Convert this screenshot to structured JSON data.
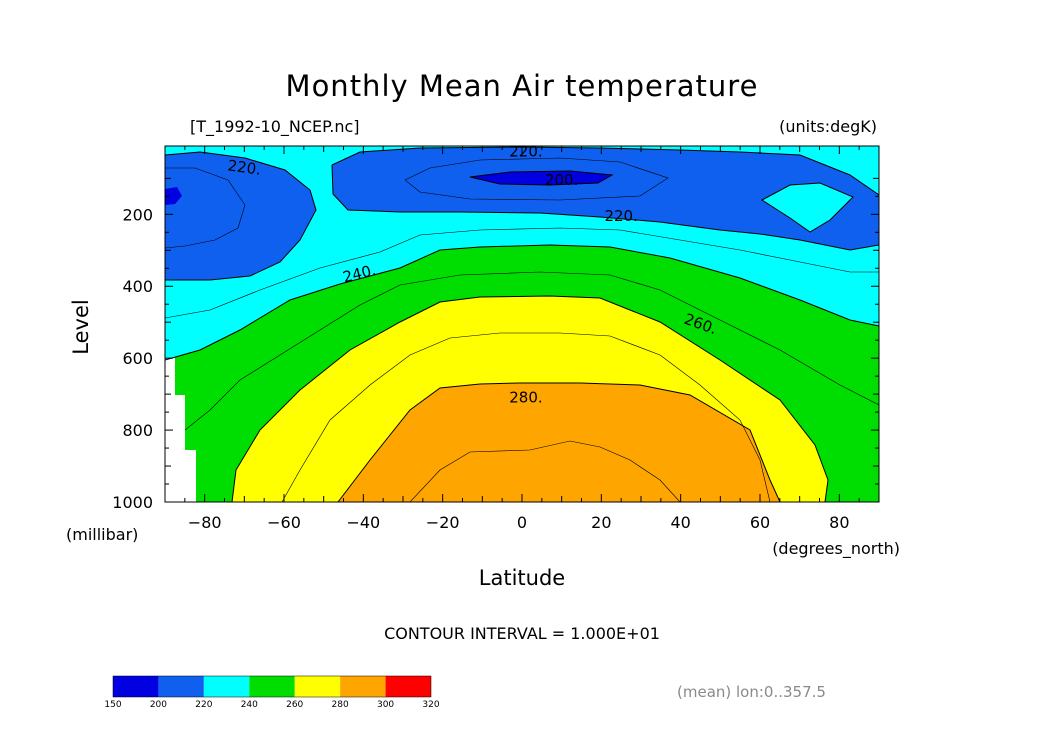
{
  "chart_data": {
    "type": "contour",
    "title": "Monthly Mean Air temperature",
    "dataset": "[T_1992-10_NCEP.nc]",
    "units": "(units:degK)",
    "xlabel": "Latitude",
    "xunits": "(degrees_north)",
    "ylabel": "Level",
    "yunits": "(millibar)",
    "xlim": [
      -90,
      90
    ],
    "ylim": [
      1000,
      10
    ],
    "x_ticks": [
      -80,
      -60,
      -40,
      -20,
      0,
      20,
      40,
      60,
      80
    ],
    "x_tick_labels": [
      "−80",
      "−60",
      "−40",
      "−20",
      "0",
      "20",
      "40",
      "60",
      "80"
    ],
    "y_ticks": [
      200,
      400,
      600,
      800,
      1000
    ],
    "y_tick_labels": [
      "200",
      "400",
      "600",
      "800",
      "1000"
    ],
    "contour_interval_text": "CONTOUR INTERVAL = 1.000E+01",
    "footnote": "(mean) lon:0..357.5",
    "contour_labels": [
      {
        "text": "220.",
        "lat": -70,
        "level": 70
      },
      {
        "text": "220.",
        "lat": 1,
        "level": 25
      },
      {
        "text": "200.",
        "lat": 10,
        "level": 105
      },
      {
        "text": "220.",
        "lat": 25,
        "level": 205
      },
      {
        "text": "240.",
        "lat": -41,
        "level": 365
      },
      {
        "text": "260.",
        "lat": 45,
        "level": 505
      },
      {
        "text": "280.",
        "lat": 1,
        "level": 710
      }
    ],
    "levels": [
      150,
      200,
      220,
      240,
      260,
      280,
      300,
      320
    ],
    "colorbar": {
      "bounds": [
        150,
        200,
        220,
        240,
        260,
        280,
        300,
        320
      ],
      "tick_labels": [
        "150",
        "200",
        "220",
        "240",
        "260",
        "280",
        "300",
        "320"
      ],
      "colors": [
        "#0000e0",
        "#1060f0",
        "#00ffff",
        "#00dd00",
        "#ffff00",
        "#ffa500",
        "#ff0000"
      ]
    }
  }
}
